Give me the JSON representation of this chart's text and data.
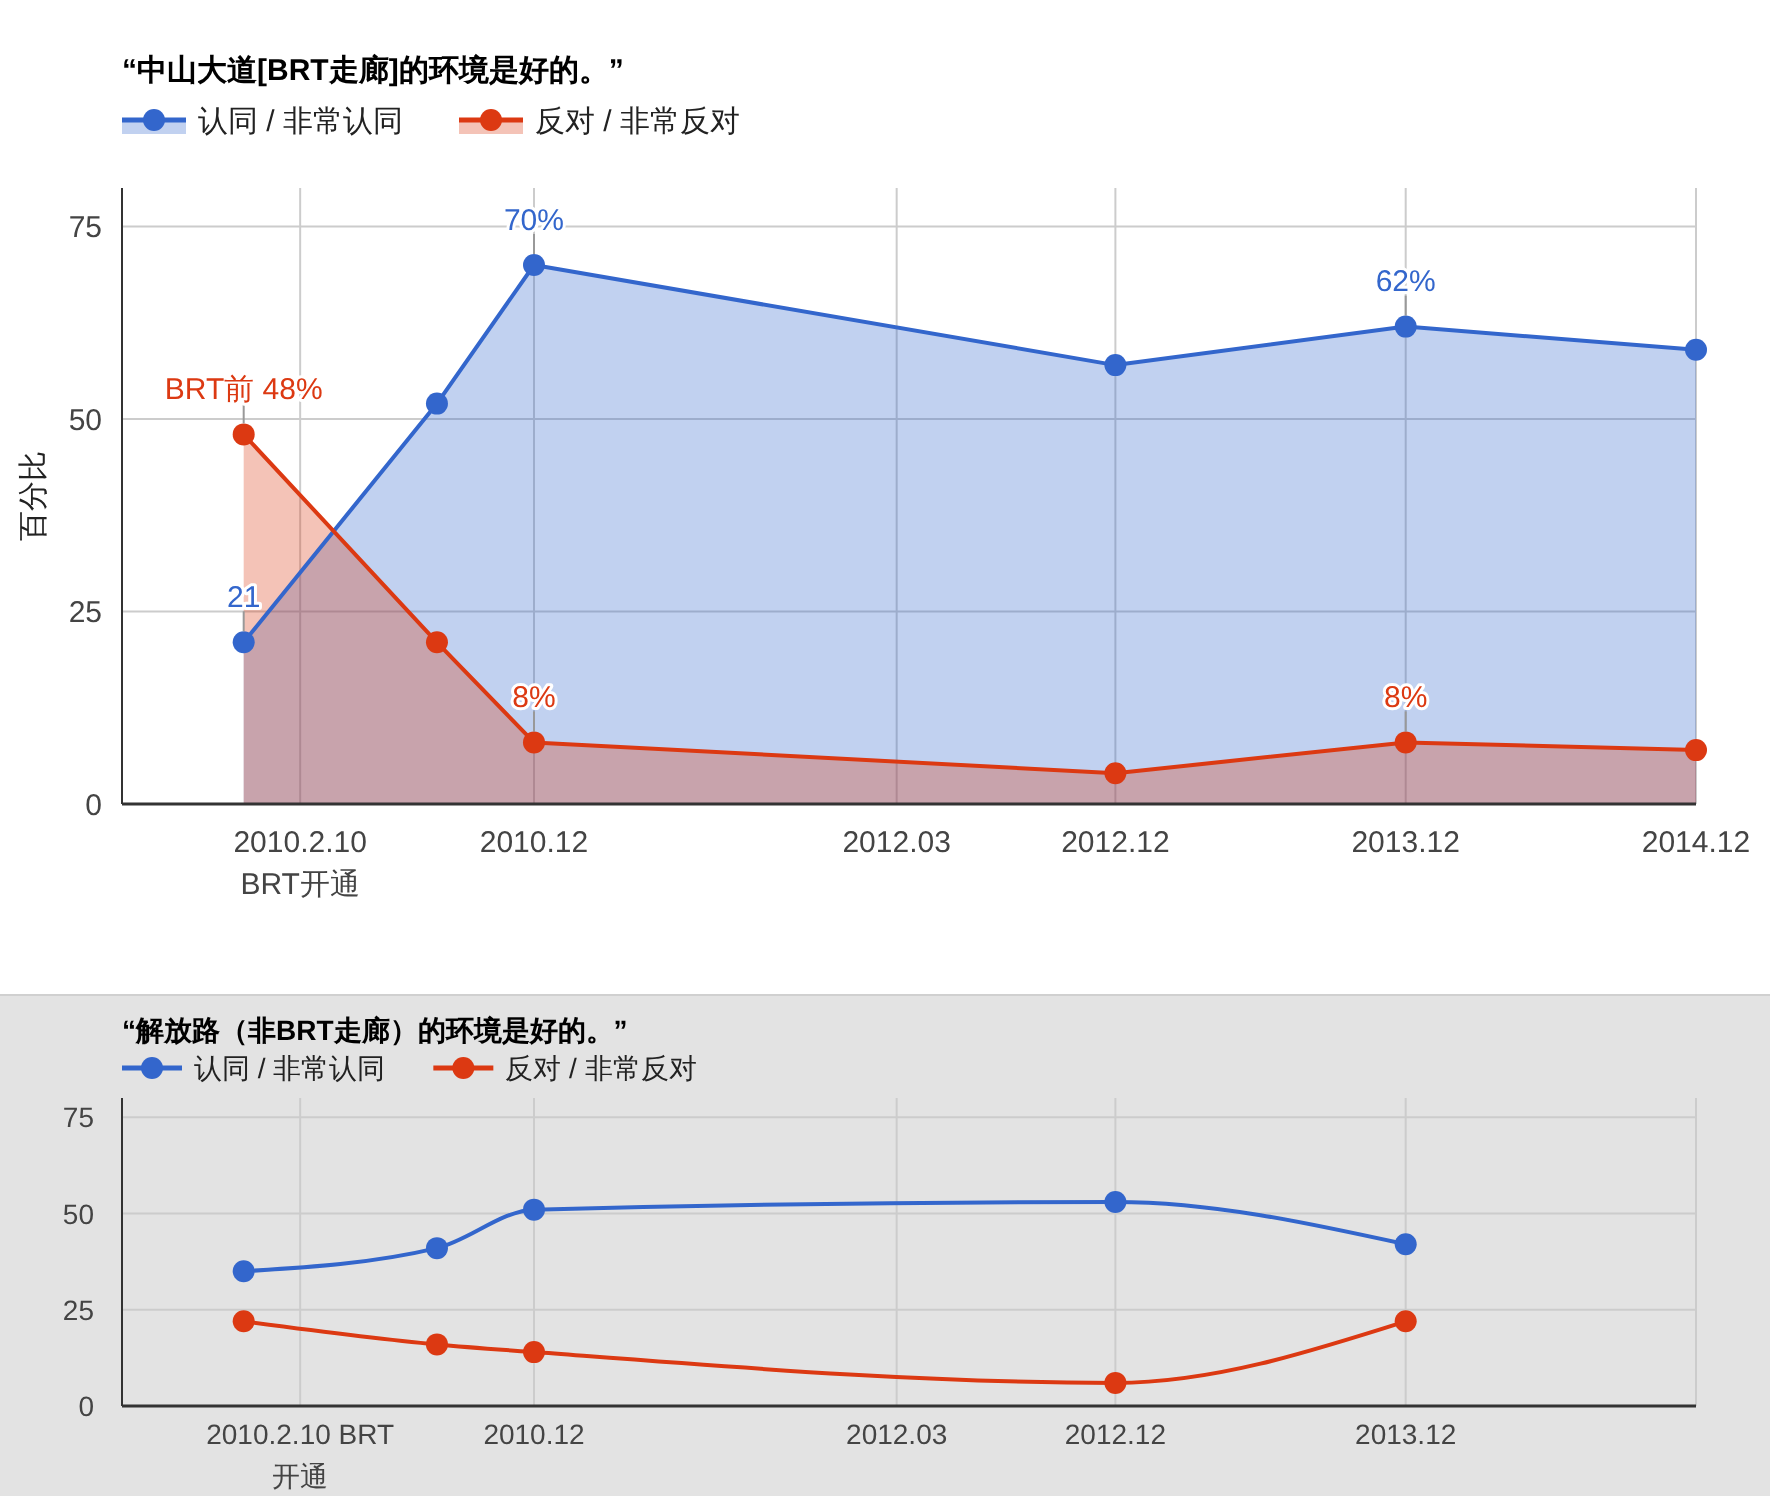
{
  "chart_data": [
    {
      "type": "area",
      "title": "“中山大道[BRT走廊]的环境是好的。”",
      "ylabel": "百分比",
      "x": [
        "2009-12",
        "2010-08",
        "2010-12",
        "2012-12",
        "2013-12",
        "2014-12"
      ],
      "series": [
        {
          "name": "认同 / 非常认同",
          "color": "#3366cc",
          "values": [
            21,
            52,
            70,
            57,
            62,
            59
          ],
          "value_labels": [
            "21",
            null,
            "70%",
            null,
            "62%",
            null
          ]
        },
        {
          "name": "反对 / 非常反对",
          "color": "#dc3912",
          "values": [
            48,
            21,
            8,
            4,
            8,
            7
          ],
          "value_labels": [
            "BRT前 48%",
            null,
            "8%",
            null,
            "8%",
            null
          ]
        }
      ],
      "xlim": [
        "2009-07",
        "2014-12"
      ],
      "xticks": [
        {
          "value": "2010-02-10",
          "label": "2010.2.10\nBRT开通"
        },
        {
          "value": "2010-12",
          "label": "2010.12"
        },
        {
          "value": "2012-03",
          "label": "2012.03"
        },
        {
          "value": "2012-12",
          "label": "2012.12"
        },
        {
          "value": "2013-12",
          "label": "2013.12"
        },
        {
          "value": "2014-12",
          "label": "2014.12"
        }
      ],
      "ylim": [
        0,
        80
      ],
      "yticks": [
        0,
        25,
        50,
        75
      ],
      "grid": true,
      "legend": "top left",
      "marker": "circle"
    },
    {
      "type": "line",
      "title": "“解放路（非BRT走廊）的环境是好的。”",
      "x": [
        "2009-12",
        "2010-08",
        "2010-12",
        "2012-12",
        "2013-12"
      ],
      "series": [
        {
          "name": "认同 / 非常认同",
          "color": "#3366cc",
          "values": [
            35,
            41,
            51,
            53,
            42
          ]
        },
        {
          "name": "反对 / 非常反对",
          "color": "#dc3912",
          "values": [
            22,
            16,
            14,
            6,
            22
          ]
        }
      ],
      "xlim": [
        "2009-07",
        "2014-12"
      ],
      "xticks": [
        {
          "value": "2010-02-10",
          "label": "2010.2.10 BRT\n开通"
        },
        {
          "value": "2010-12",
          "label": "2010.12"
        },
        {
          "value": "2012-03",
          "label": "2012.03"
        },
        {
          "value": "2012-12",
          "label": "2012.12"
        },
        {
          "value": "2013-12",
          "label": "2013.12"
        },
        {
          "value": "2014-12",
          "label": null
        }
      ],
      "ylim": [
        0,
        80
      ],
      "yticks": [
        0,
        25,
        50,
        75
      ],
      "grid": true,
      "legend": "top left",
      "marker": "circle"
    }
  ]
}
